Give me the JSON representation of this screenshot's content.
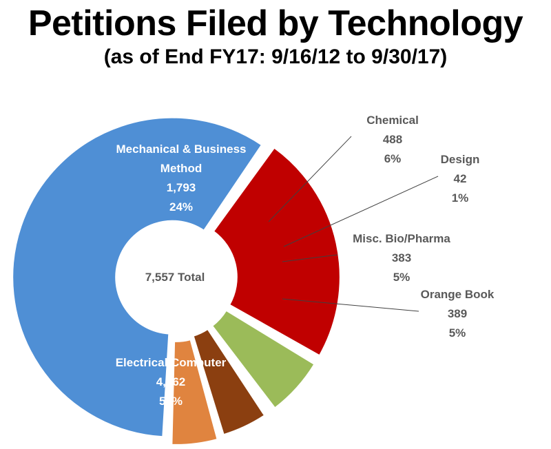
{
  "header": {
    "title": "Petitions Filed by Technology",
    "subtitle": "(as of End FY17: 9/16/12 to 9/30/17)"
  },
  "chart_data": {
    "type": "pie",
    "style": "donut with exploded slices",
    "center_label": "7,557 Total",
    "total": 7557,
    "slices": [
      {
        "name": "Mechanical & Business Method",
        "label_lines": [
          "Mechanical & Business",
          "Method"
        ],
        "value": 1793,
        "value_label": "1,793",
        "percent": 24,
        "percent_label": "24%",
        "color": "#C00000",
        "label_position": "inside"
      },
      {
        "name": "Chemical",
        "label_lines": [
          "Chemical"
        ],
        "value": 488,
        "value_label": "488",
        "percent": 6,
        "percent_label": "6%",
        "color": "#9BBB59",
        "label_position": "outside"
      },
      {
        "name": "Design",
        "label_lines": [
          "Design"
        ],
        "value": 42,
        "value_label": "42",
        "percent": 1,
        "percent_label": "1%",
        "color": "#8C8C8C",
        "label_position": "outside"
      },
      {
        "name": "Misc. Bio/Pharma",
        "label_lines": [
          "Misc. Bio/Pharma"
        ],
        "value": 383,
        "value_label": "383",
        "percent": 5,
        "percent_label": "5%",
        "color": "#8B3F10",
        "label_position": "outside"
      },
      {
        "name": "Orange Book",
        "label_lines": [
          "Orange Book"
        ],
        "value": 389,
        "value_label": "389",
        "percent": 5,
        "percent_label": "5%",
        "color": "#E0843F",
        "label_position": "outside"
      },
      {
        "name": "Electrical/Computer",
        "label_lines": [
          "Electrical/Computer"
        ],
        "value": 4462,
        "value_label": "4,462",
        "percent": 59,
        "percent_label": "59%",
        "color": "#4F8FD5",
        "label_position": "inside"
      }
    ]
  }
}
